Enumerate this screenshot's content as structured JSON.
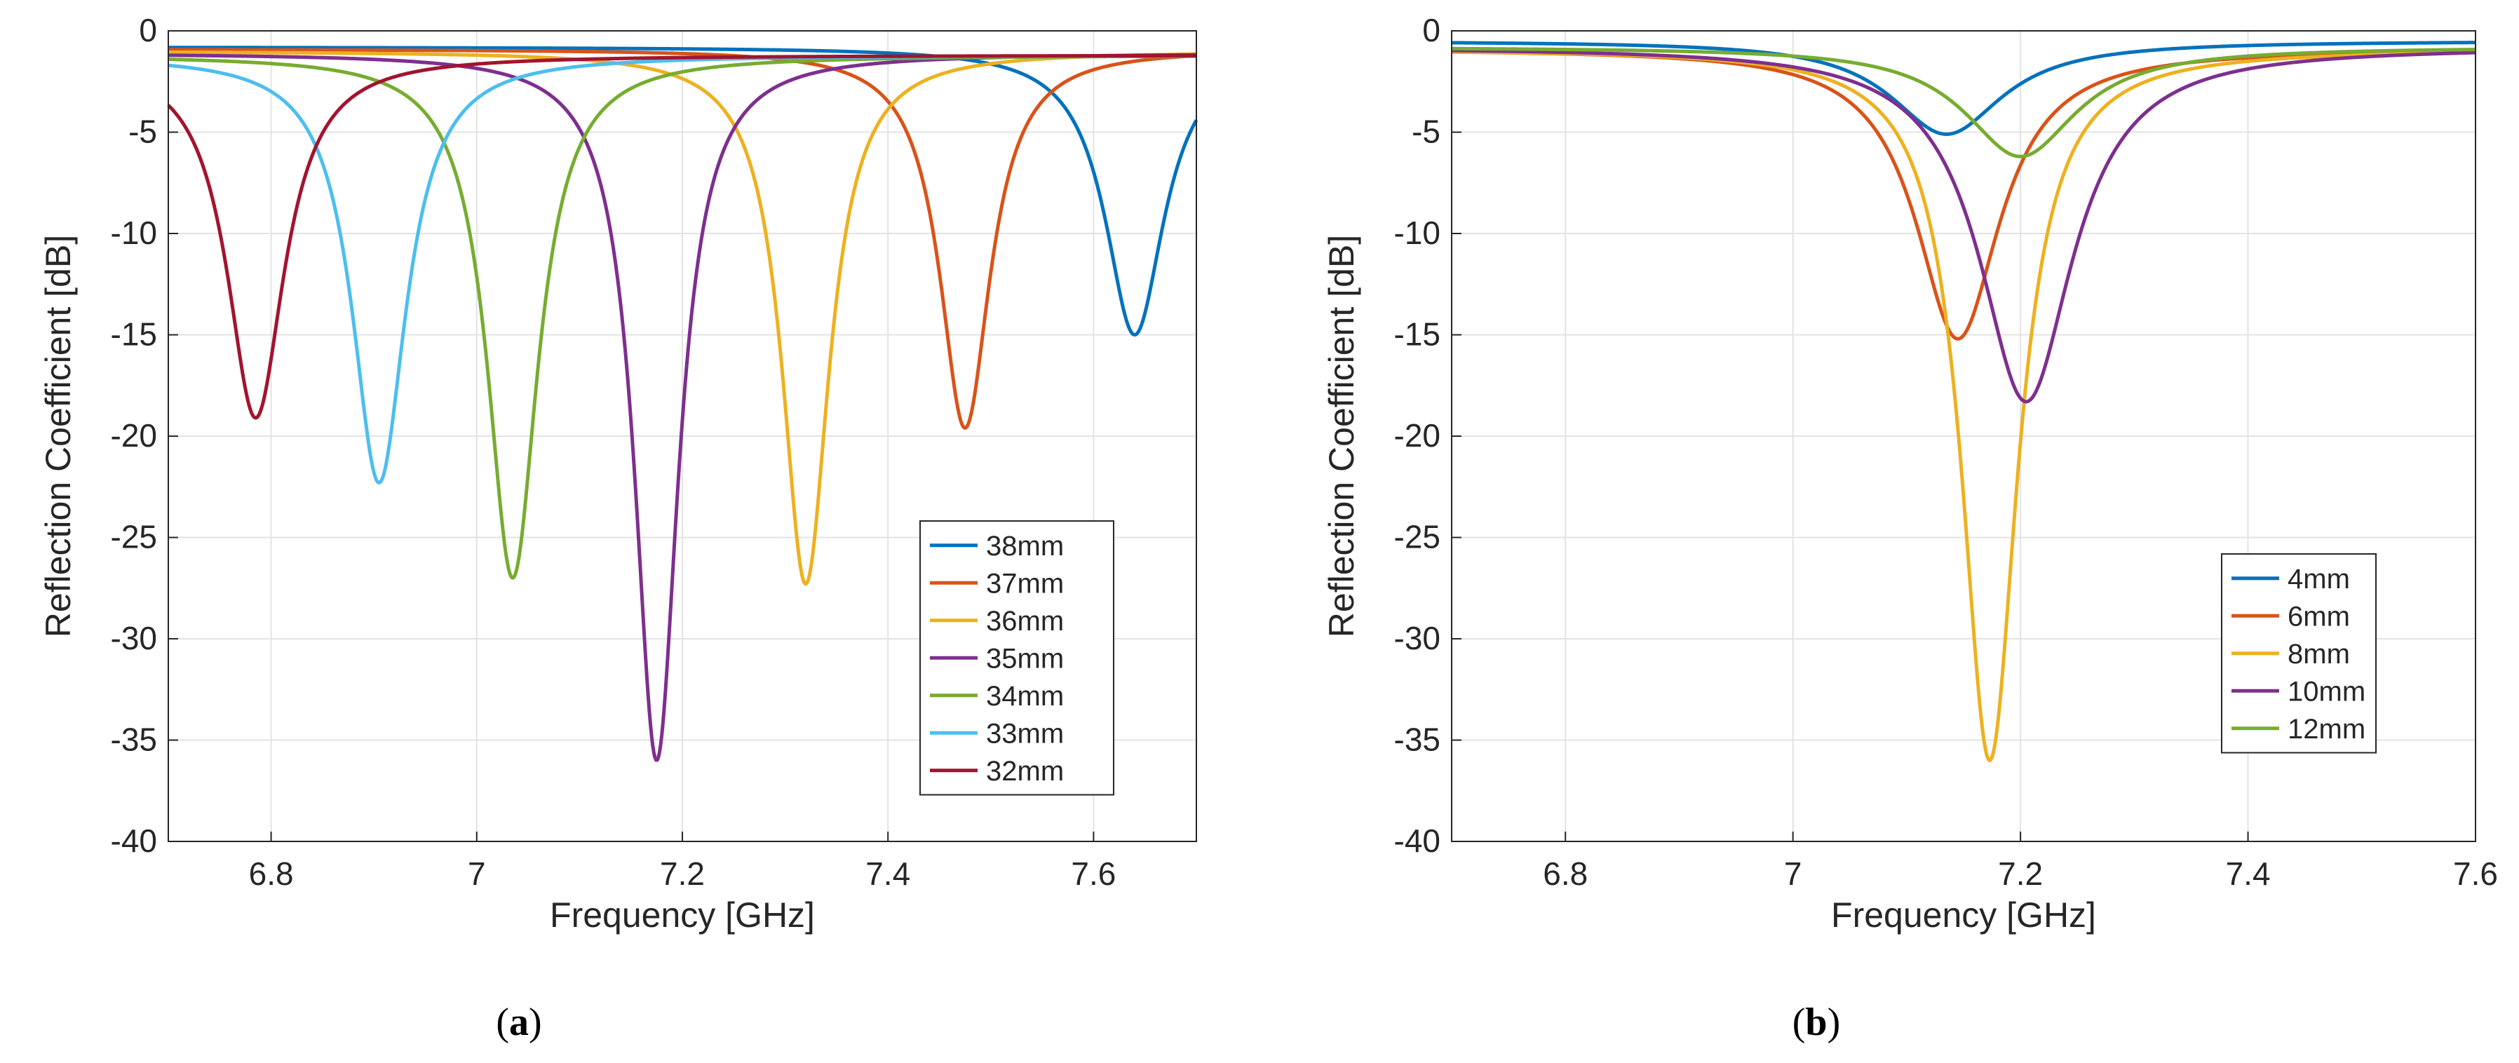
{
  "colors": {
    "blue": "#0072BD",
    "orange": "#D95319",
    "yellow": "#EDB120",
    "purple": "#7E2F8E",
    "green": "#77AC30",
    "cyan": "#4DBEEE",
    "darkred": "#A2142F",
    "grid": "#e3e3e3",
    "axis": "#262626"
  },
  "chart_data": [
    {
      "type": "line",
      "panel": "a",
      "caption_letter": "a",
      "xlabel": "Frequency [GHz]",
      "ylabel": "Reflection Coefficient [dB]",
      "xlim": [
        6.7,
        7.7
      ],
      "ylim": [
        -40,
        0
      ],
      "xticks": [
        6.8,
        7.0,
        7.2,
        7.4,
        7.6
      ],
      "xtick_labels": [
        "6.8",
        "7",
        "7.2",
        "7.4",
        "7.6"
      ],
      "yticks": [
        0,
        -5,
        -10,
        -15,
        -20,
        -25,
        -30,
        -35,
        -40
      ],
      "ytick_labels": [
        "0",
        "-5",
        "-10",
        "-15",
        "-20",
        "-25",
        "-30",
        "-35",
        "-40"
      ],
      "grid": true,
      "legend_position": "lower-right",
      "series": [
        {
          "name": "38mm",
          "color": "#0072BD",
          "f0": 7.64,
          "min": -15.0,
          "base": -0.8,
          "width": 0.035
        },
        {
          "name": "37mm",
          "color": "#D95319",
          "f0": 7.475,
          "min": -19.6,
          "base": -0.9,
          "width": 0.03
        },
        {
          "name": "36mm",
          "color": "#EDB120",
          "f0": 7.32,
          "min": -27.3,
          "base": -1.0,
          "width": 0.028
        },
        {
          "name": "35mm",
          "color": "#7E2F8E",
          "f0": 7.175,
          "min": -36.0,
          "base": -1.1,
          "width": 0.026
        },
        {
          "name": "34mm",
          "color": "#77AC30",
          "f0": 7.035,
          "min": -27.0,
          "base": -1.2,
          "width": 0.03
        },
        {
          "name": "33mm",
          "color": "#4DBEEE",
          "f0": 6.905,
          "min": -22.3,
          "base": -1.2,
          "width": 0.032
        },
        {
          "name": "32mm",
          "color": "#A2142F",
          "f0": 6.785,
          "min": -19.1,
          "base": -1.2,
          "width": 0.034
        }
      ]
    },
    {
      "type": "line",
      "panel": "b",
      "caption_letter": "b",
      "xlabel": "Frequency [GHz]",
      "ylabel": "Reflection Coefficient [dB]",
      "xlim": [
        6.7,
        7.6
      ],
      "ylim": [
        -40,
        0
      ],
      "xticks": [
        6.8,
        7.0,
        7.2,
        7.4,
        7.6
      ],
      "xtick_labels": [
        "6.8",
        "7",
        "7.2",
        "7.4",
        "7.6"
      ],
      "yticks": [
        0,
        -5,
        -10,
        -15,
        -20,
        -25,
        -30,
        -35,
        -40
      ],
      "ytick_labels": [
        "0",
        "-5",
        "-10",
        "-15",
        "-20",
        "-25",
        "-30",
        "-35",
        "-40"
      ],
      "grid": true,
      "legend_position": "lower-right",
      "series": [
        {
          "name": "4mm",
          "color": "#0072BD",
          "f0": 7.135,
          "min": -5.1,
          "base": -0.5,
          "width": 0.06
        },
        {
          "name": "6mm",
          "color": "#D95319",
          "f0": 7.145,
          "min": -15.2,
          "base": -0.9,
          "width": 0.045
        },
        {
          "name": "8mm",
          "color": "#EDB120",
          "f0": 7.173,
          "min": -36.0,
          "base": -0.9,
          "width": 0.03
        },
        {
          "name": "10mm",
          "color": "#7E2F8E",
          "f0": 7.205,
          "min": -18.3,
          "base": -0.8,
          "width": 0.05
        },
        {
          "name": "12mm",
          "color": "#77AC30",
          "f0": 7.2,
          "min": -6.2,
          "base": -0.8,
          "width": 0.06
        }
      ]
    }
  ]
}
